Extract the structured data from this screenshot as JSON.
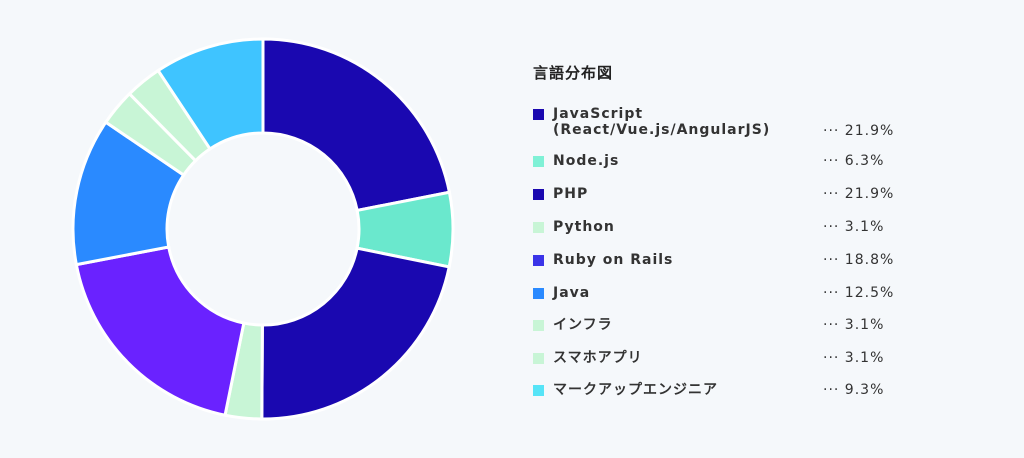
{
  "chart_data": {
    "type": "pie",
    "title": "言語分布図",
    "slices": [
      {
        "label": "JavaScript\n(React/Vue.js/AngularJS)",
        "value": 21.9,
        "display": "··· 21.9%",
        "color": "#1a08b0"
      },
      {
        "label": "Node.js",
        "value": 6.3,
        "display": "··· 6.3%",
        "color": "#6ae8cd"
      },
      {
        "label": "PHP",
        "value": 21.9,
        "display": "··· 21.9%",
        "color": "#1a08b0"
      },
      {
        "label": "Python",
        "value": 3.1,
        "display": "··· 3.1%",
        "color": "#c8f5d6"
      },
      {
        "label": "Ruby on Rails",
        "value": 18.8,
        "display": "··· 18.8%",
        "color": "#6a22ff"
      },
      {
        "label": "Java",
        "value": 12.5,
        "display": "··· 12.5%",
        "color": "#2a8aff"
      },
      {
        "label": "インフラ",
        "value": 3.1,
        "display": "··· 3.1%",
        "color": "#c8f5d6"
      },
      {
        "label": "スマホアプリ",
        "value": 3.1,
        "display": "··· 3.1%",
        "color": "#c8f5d6"
      },
      {
        "label": "マークアップエンジニア",
        "value": 9.3,
        "display": "··· 9.3%",
        "color": "#3fc4ff"
      }
    ],
    "legend_swatch_colors": [
      "#1a08b0",
      "#7ff1d6",
      "#1a08b0",
      "#c8f5d6",
      "#3a34e8",
      "#2a8aff",
      "#c8f5d6",
      "#c8f5d6",
      "#56e4f7"
    ],
    "legend_position": "right"
  }
}
